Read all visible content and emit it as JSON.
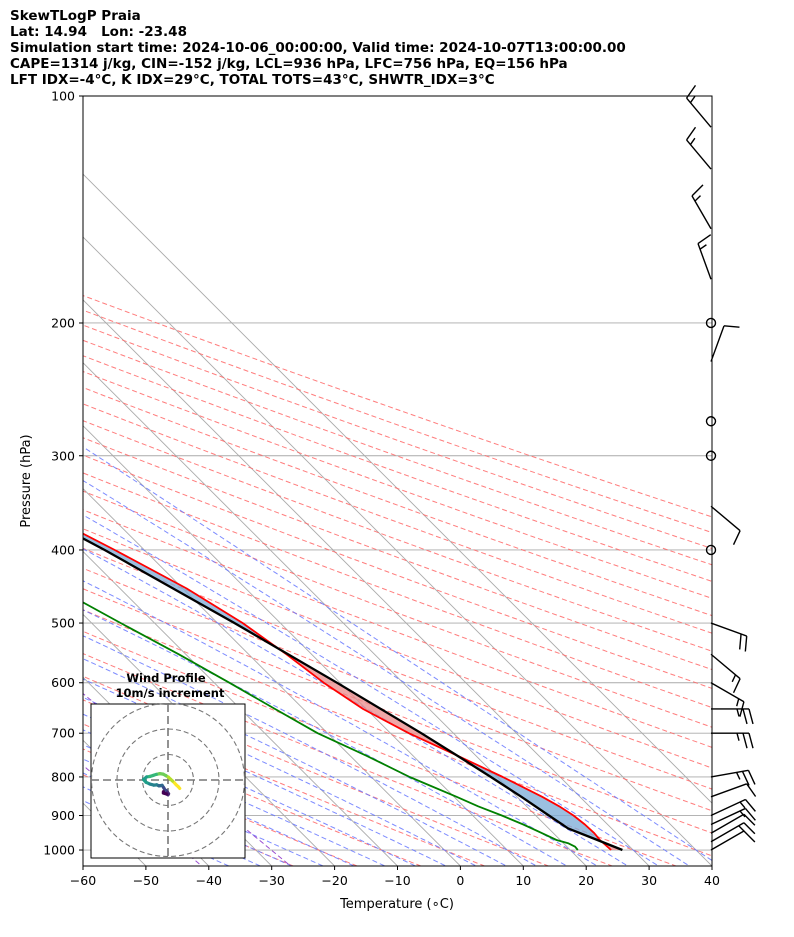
{
  "title_lines": [
    "SkewTLogP Praia",
    "Lat: 14.94   Lon: -23.48",
    "Simulation start time: 2024-10-06_00:00:00, Valid time: 2024-10-07T13:00:00.00",
    "CAPE=1314 j/kg, CIN=-152 j/kg, LCL=936 hPa, LFC=756 hPa, EQ=156 hPa",
    "LFT IDX=-4°C, K IDX=29°C, TOTAL TOTS=43°C, SHWTR_IDX=3°C"
  ],
  "colors": {
    "temperature": "#ff0000",
    "dewpoint": "#008000",
    "parcel": "#000000",
    "cape_fill": "#e98a8a",
    "cin_fill": "#7aaad6",
    "dry_adiabat": "#ff6666",
    "moist_adiabat": "#6677ff",
    "mixing_ratio": "#9a4dd0",
    "isotherm": "#aaaaaa"
  },
  "chart_data": {
    "type": "skewt",
    "xlabel": "Temperature (∘C)",
    "ylabel": "Pressure (hPa)",
    "xlim": [
      -60,
      40
    ],
    "ylim": [
      1050,
      100
    ],
    "x_ticks": [
      -60,
      -50,
      -40,
      -30,
      -20,
      -10,
      0,
      10,
      20,
      30,
      40
    ],
    "x_tick_labels": [
      "−60",
      "−50",
      "−40",
      "−30",
      "−20",
      "−10",
      "0",
      "10",
      "20",
      "30",
      "40"
    ],
    "y_ticks": [
      100,
      200,
      300,
      400,
      500,
      600,
      700,
      800,
      900,
      1000
    ],
    "y_tick_labels": [
      "100",
      "200",
      "300",
      "400",
      "500",
      "600",
      "700",
      "800",
      "900",
      "1000"
    ],
    "grid": true,
    "temperature": {
      "pressure": [
        1000,
        970,
        950,
        925,
        900,
        875,
        850,
        800,
        750,
        700,
        650,
        600,
        550,
        500,
        450,
        400,
        350,
        300,
        250,
        200,
        175,
        160,
        150,
        140,
        130,
        120,
        110,
        105,
        100
      ],
      "values": [
        26.5,
        26.3,
        26.5,
        26.4,
        26.0,
        25.2,
        24.0,
        20.9,
        17.1,
        12.9,
        9.5,
        7.4,
        6.0,
        4.0,
        0.6,
        -4.7,
        -11.3,
        -19.4,
        -29.6,
        -43.6,
        -52.4,
        -58.3,
        -62.3,
        -66.3,
        -70.2,
        -74.2,
        -79.8,
        -82.4,
        -85.0
      ]
    },
    "dewpoint": {
      "pressure": [
        1000,
        990,
        980,
        970,
        950,
        925,
        900,
        875,
        850,
        800,
        750,
        700,
        650,
        600,
        550,
        500,
        450,
        400,
        350,
        320,
        300,
        280,
        260,
        250,
        230,
        210,
        200,
        180,
        160,
        150,
        140,
        130,
        120,
        110,
        105,
        100
      ],
      "values": [
        21.2,
        21.3,
        20.8,
        19.4,
        18.2,
        16.6,
        14.6,
        12.3,
        10.4,
        6.1,
        2.6,
        -1.6,
        -4.5,
        -7.6,
        -11.1,
        -15.4,
        -19.9,
        -25.9,
        -31.2,
        -40.1,
        -41.2,
        -43.6,
        -45.6,
        -47.9,
        -52.4,
        -56.7,
        -59.1,
        -63.9,
        -69.3,
        -80.5,
        -83.1,
        -86.1,
        -89.4,
        -93.4,
        -95.8,
        -98.4
      ]
    },
    "parcel": {
      "pressure": [
        1000,
        970,
        936,
        900,
        850,
        800,
        756,
        700,
        600,
        500,
        400,
        300,
        250,
        200,
        175,
        156,
        140,
        120,
        100
      ],
      "values": [
        28.3,
        25.9,
        23.1,
        22.1,
        20.7,
        19.0,
        17.3,
        14.9,
        9.5,
        2.7,
        -6.3,
        -19.4,
        -29.2,
        -42.1,
        -50.3,
        -58.3,
        -65.5,
        -75.1,
        -85.0
      ]
    },
    "wind_barbs": {
      "pressure": [
        1000,
        975,
        950,
        925,
        900,
        850,
        800,
        700,
        650,
        600,
        550,
        500,
        400,
        350,
        300,
        270,
        225,
        200,
        175,
        150,
        125,
        110
      ],
      "speed_kt": [
        10,
        15,
        10,
        15,
        15,
        10,
        25,
        25,
        25,
        15,
        15,
        20,
        0,
        10,
        0,
        0,
        10,
        0,
        15,
        15,
        15,
        15
      ],
      "direction_deg": [
        60,
        60,
        60,
        65,
        65,
        70,
        80,
        90,
        90,
        120,
        130,
        110,
        0,
        130,
        0,
        0,
        20,
        0,
        340,
        330,
        320,
        320
      ]
    },
    "hodograph": {
      "title": "Wind Profile",
      "subtitle": "10m/s increment",
      "rings_ms": [
        10,
        20,
        30
      ],
      "u_ms": [
        4.6,
        4.0,
        3.2,
        2.5,
        1.8,
        1.0,
        0.2,
        -0.8,
        -1.9,
        -3.2,
        -4.6,
        -5.8,
        -7.1,
        -8.4,
        -9.6,
        -8.6,
        -7.1,
        -5.6,
        -4.4,
        -3.6,
        -3.0,
        -2.3,
        -1.7,
        -1.2,
        -0.6,
        -0.2,
        0.2,
        0.0,
        -0.5,
        -1.2,
        -1.8,
        -1.8
      ],
      "v_ms": [
        -3.3,
        -2.6,
        -1.9,
        -1.1,
        -0.4,
        0.3,
        1.1,
        1.7,
        2.3,
        2.5,
        2.2,
        1.8,
        1.4,
        1.2,
        0.2,
        -0.9,
        -1.6,
        -2.0,
        -1.9,
        -2.3,
        -2.2,
        -2.1,
        -3.0,
        -3.9,
        -4.2,
        -4.8,
        -5.4,
        -5.8,
        -5.5,
        -5.3,
        -5.1,
        -4.6
      ],
      "colormap": [
        "#fde725",
        "#b5de2b",
        "#6ece58",
        "#35b779",
        "#1f9e89",
        "#26828e",
        "#31688e",
        "#3e4989",
        "#482878",
        "#440154"
      ]
    }
  }
}
